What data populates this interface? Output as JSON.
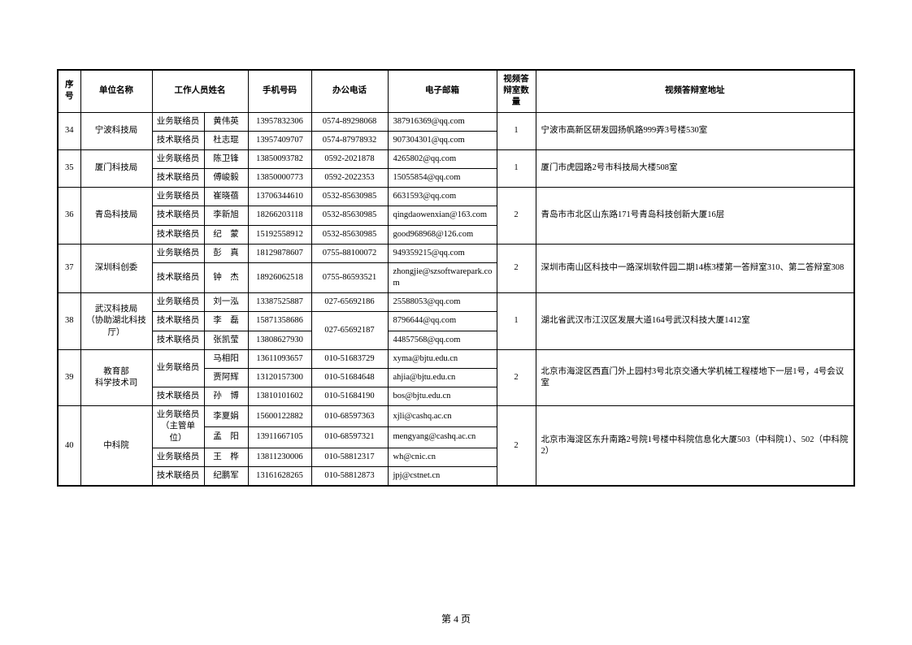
{
  "headers": {
    "seq": "序号",
    "unit": "单位名称",
    "staff": "工作人员姓名",
    "mobile": "手机号码",
    "office_tel": "办公电话",
    "email": "电子邮箱",
    "room_count": "视频答辩室数量",
    "address": "视频答辩室地址"
  },
  "page_number": "第 4 页",
  "rows": [
    {
      "seq": "34",
      "unit": "宁波科技局",
      "room_count": "1",
      "address": "宁波市高新区研发园扬帆路999弄3号楼530室",
      "staff": [
        {
          "role": "业务联络员",
          "name": "黄伟英",
          "mobile": "13957832306",
          "tel": "0574-89298068",
          "email": "387916369@qq.com"
        },
        {
          "role": "技术联络员",
          "name": "杜志琨",
          "mobile": "13957409707",
          "tel": "0574-87978932",
          "email": "907304301@qq.com"
        }
      ]
    },
    {
      "seq": "35",
      "unit": "厦门科技局",
      "room_count": "1",
      "address": "厦门市虎园路2号市科技局大楼508室",
      "staff": [
        {
          "role": "业务联络员",
          "name": "陈卫锋",
          "mobile": "13850093782",
          "tel": "0592-2021878",
          "email": "4265802@qq.com"
        },
        {
          "role": "技术联络员",
          "name": "傅峻毅",
          "mobile": "13850000773",
          "tel": "0592-2022353",
          "email": "15055854@qq.com"
        }
      ]
    },
    {
      "seq": "36",
      "unit": "青岛科技局",
      "room_count": "2",
      "address": "青岛市市北区山东路171号青岛科技创新大厦16层",
      "staff": [
        {
          "role": "业务联络员",
          "name": "崔晓蓓",
          "mobile": "13706344610",
          "tel": "0532-85630985",
          "email": "6631593@qq.com"
        },
        {
          "role": "技术联络员",
          "name": "李新旭",
          "mobile": "18266203118",
          "tel": "0532-85630985",
          "email": "qingdaowenxian@163.com"
        },
        {
          "role": "技术联络员",
          "name": "纪　蒙",
          "mobile": "15192558912",
          "tel": "0532-85630985",
          "email": "good968968@126.com"
        }
      ]
    },
    {
      "seq": "37",
      "unit": "深圳科创委",
      "room_count": "2",
      "address": "深圳市南山区科技中一路深圳软件园二期14栋3楼第一答辩室310、第二答辩室308",
      "staff": [
        {
          "role": "业务联络员",
          "name": "彭　真",
          "mobile": "18129878607",
          "tel": "0755-88100072",
          "email": "949359215@qq.com"
        },
        {
          "role": "技术联络员",
          "name": "钟　杰",
          "mobile": "18926062518",
          "tel": "0755-86593521",
          "email": "zhongjie@szsoftwarepark.com"
        }
      ]
    },
    {
      "seq": "38",
      "unit": "武汉科技局\n（协助湖北科技厅）",
      "room_count": "1",
      "address": "湖北省武汉市江汉区发展大道164号武汉科技大厦1412室",
      "tel_merge": {
        "start_index": 1,
        "span": 2,
        "tel": "027-65692187"
      },
      "staff": [
        {
          "role": "业务联络员",
          "name": "刘一泓",
          "mobile": "13387525887",
          "tel": "027-65692186",
          "email": "25588053@qq.com"
        },
        {
          "role": "技术联络员",
          "name": "李　磊",
          "mobile": "15871358686",
          "email": "8796644@qq.com"
        },
        {
          "role": "技术联络员",
          "name": "张凯莹",
          "mobile": "13808627930",
          "email": "44857568@qq.com"
        }
      ]
    },
    {
      "seq": "39",
      "unit": "教育部\n科学技术司",
      "room_count": "2",
      "address": "北京市海淀区西直门外上园村3号北京交通大学机械工程楼地下一层1号，4号会议室",
      "role_merge": {
        "start_index": 0,
        "span": 2,
        "role": "业务联络员"
      },
      "staff": [
        {
          "name": "马相阳",
          "mobile": "13611093657",
          "tel": "010-51683729",
          "email": "xyma@bjtu.edu.cn"
        },
        {
          "name": "贾阿辉",
          "mobile": "13120157300",
          "tel": "010-51684648",
          "email": "ahjia@bjtu.edu.cn"
        },
        {
          "role": "技术联络员",
          "name": "孙　博",
          "mobile": "13810101602",
          "tel": "010-51684190",
          "email": "bos@bjtu.edu.cn"
        }
      ]
    },
    {
      "seq": "40",
      "unit": "中科院",
      "room_count": "2",
      "address": "北京市海淀区东升南路2号院1号楼中科院信息化大厦503（中科院1）、502（中科院2）",
      "role_merge": {
        "start_index": 0,
        "span": 2,
        "role": "业务联络员\n（主管单位）"
      },
      "staff": [
        {
          "name": "李夏娟",
          "mobile": "15600122882",
          "tel": "010-68597363",
          "email": "xjli@cashq.ac.cn"
        },
        {
          "name": "孟　阳",
          "mobile": "13911667105",
          "tel": "010-68597321",
          "email": "mengyang@cashq.ac.cn"
        },
        {
          "role": "业务联络员",
          "name": "王　桦",
          "mobile": "13811230006",
          "tel": "010-58812317",
          "email": "wh@cnic.cn"
        },
        {
          "role": "技术联络员",
          "name": "纪鹏军",
          "mobile": "13161628265",
          "tel": "010-58812873",
          "email": "jpj@cstnet.cn"
        }
      ]
    }
  ]
}
